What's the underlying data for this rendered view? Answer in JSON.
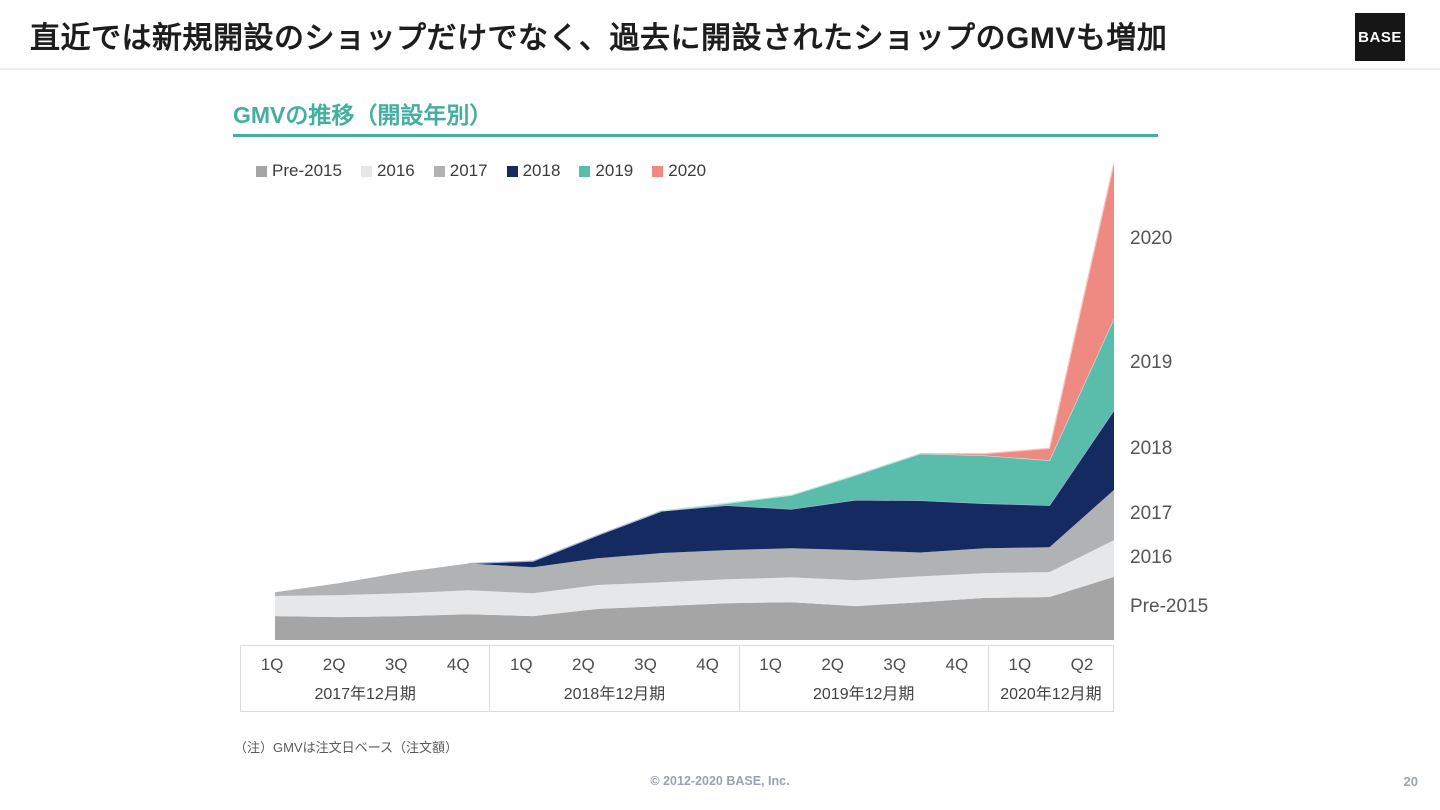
{
  "slide": {
    "title": "直近では新規開設のショップだけでなく、過去に開設されたショップのGMVも増加",
    "logo_text": "BASE",
    "note": "（注）GMVは注文日ベース（注文額）",
    "footer_copyright": "© 2012-2020 BASE, Inc.",
    "page_number": "20"
  },
  "chart": {
    "title": "GMVの推移（開設年別）",
    "accent_color": "#44aea1"
  },
  "chart_data": {
    "type": "area",
    "stacked": true,
    "title": "GMVの推移（開設年別）",
    "legend_position": "top-left",
    "grid": false,
    "y_axis": "no axis shown — values are relative GMV, indexed so that FY2020 Q2 total = 100",
    "y_max": 100,
    "x_quarters": [
      "1Q",
      "2Q",
      "3Q",
      "4Q",
      "1Q",
      "2Q",
      "3Q",
      "4Q",
      "1Q",
      "2Q",
      "3Q",
      "4Q",
      "1Q",
      "Q2"
    ],
    "x_groups": [
      {
        "label": "2017年12月期",
        "quarters": [
          "1Q",
          "2Q",
          "3Q",
          "4Q"
        ]
      },
      {
        "label": "2018年12月期",
        "quarters": [
          "1Q",
          "2Q",
          "3Q",
          "4Q"
        ]
      },
      {
        "label": "2019年12月期",
        "quarters": [
          "1Q",
          "2Q",
          "3Q",
          "4Q"
        ]
      },
      {
        "label": "2020年12月期",
        "quarters": [
          "1Q",
          "Q2"
        ]
      }
    ],
    "series": [
      {
        "name": "Pre-2015",
        "color": "#a5a5a5",
        "edge": null,
        "values": [
          5.0,
          4.8,
          5.0,
          5.4,
          5.0,
          6.5,
          7.1,
          7.7,
          7.9,
          7.1,
          7.9,
          8.8,
          9.0,
          13.2
        ]
      },
      {
        "name": "2016",
        "color": "#e6e7e9",
        "edge": null,
        "values": [
          4.2,
          4.6,
          4.8,
          5.0,
          4.8,
          5.0,
          5.0,
          5.0,
          5.2,
          5.4,
          5.4,
          5.2,
          5.2,
          7.7
        ]
      },
      {
        "name": "2017",
        "color": "#b0b2b4",
        "edge": null,
        "values": [
          0.8,
          2.5,
          4.4,
          5.6,
          5.4,
          5.6,
          6.1,
          6.1,
          6.1,
          6.3,
          5.0,
          5.2,
          5.2,
          10.5
        ]
      },
      {
        "name": "2018",
        "color": "#152a60",
        "edge": "#a9b3d3",
        "values": [
          0,
          0,
          0,
          0,
          1.3,
          4.8,
          8.8,
          9.4,
          8.2,
          10.5,
          10.9,
          9.4,
          8.8,
          16.7
        ]
      },
      {
        "name": "2019",
        "color": "#5abcab",
        "edge": "#c3e6df",
        "values": [
          0,
          0,
          0,
          0,
          0,
          0,
          0,
          0.4,
          2.9,
          5.2,
          9.8,
          10.0,
          9.4,
          19.2
        ]
      },
      {
        "name": "2020",
        "color": "#ef8a82",
        "edge": "#f8c6c1",
        "values": [
          0,
          0,
          0,
          0,
          0,
          0,
          0,
          0,
          0,
          0,
          0,
          0.4,
          2.5,
          32.6
        ]
      }
    ],
    "right_labels": [
      "2020",
      "2019",
      "2018",
      "2017",
      "2016",
      "Pre-2015"
    ]
  }
}
